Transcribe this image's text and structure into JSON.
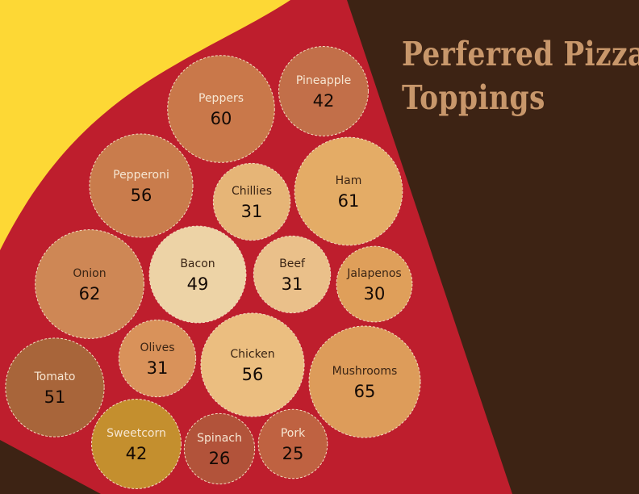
{
  "title": {
    "line1": "Perferred Pizza",
    "line2": "Toppings"
  },
  "colors": {
    "background": "#3d2314",
    "sauce": "#be1e2d",
    "crust": "#fdd835",
    "bubble_stroke": "#f3dcc0"
  },
  "chart_data": {
    "type": "packed-bubble",
    "title": "Perferred Pizza Toppings",
    "items": [
      {
        "label": "Peppers",
        "value": 60,
        "color": "#c9784a",
        "text": "light"
      },
      {
        "label": "Pineapple",
        "value": 42,
        "color": "#c26f49",
        "text": "light"
      },
      {
        "label": "Pepperoni",
        "value": 56,
        "color": "#c97c4c",
        "text": "light"
      },
      {
        "label": "Chillies",
        "value": 31,
        "color": "#e6b577",
        "text": "dark"
      },
      {
        "label": "Ham",
        "value": 61,
        "color": "#e4ac66",
        "text": "dark"
      },
      {
        "label": "Onion",
        "value": 62,
        "color": "#ce8755",
        "text": "dark"
      },
      {
        "label": "Bacon",
        "value": 49,
        "color": "#edd3a6",
        "text": "dark"
      },
      {
        "label": "Beef",
        "value": 31,
        "color": "#eac08a",
        "text": "dark"
      },
      {
        "label": "Jalapenos",
        "value": 30,
        "color": "#df9f5a",
        "text": "dark"
      },
      {
        "label": "Olives",
        "value": 31,
        "color": "#d9925a",
        "text": "dark"
      },
      {
        "label": "Chicken",
        "value": 56,
        "color": "#ebbe80",
        "text": "dark"
      },
      {
        "label": "Mushrooms",
        "value": 65,
        "color": "#dd9c5a",
        "text": "dark"
      },
      {
        "label": "Tomato",
        "value": 51,
        "color": "#a8653a",
        "text": "light"
      },
      {
        "label": "Sweetcorn",
        "value": 42,
        "color": "#c48f2e",
        "text": "light"
      },
      {
        "label": "Spinach",
        "value": 26,
        "color": "#b2533a",
        "text": "light"
      },
      {
        "label": "Pork",
        "value": 25,
        "color": "#bf6241",
        "text": "light"
      }
    ]
  }
}
